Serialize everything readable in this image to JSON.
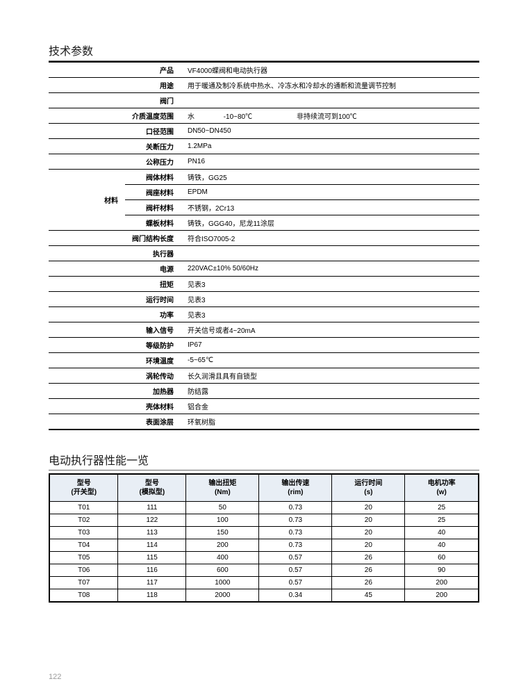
{
  "section1": {
    "title": "技术参数",
    "rows": [
      {
        "label": "产品",
        "value": "VF4000蝶阀和电动执行器"
      },
      {
        "label": "用途",
        "value": "用于暖通及制冷系统中热水、冷冻水和冷却水的通断和流量调节控制"
      },
      {
        "label": "阀门",
        "value": ""
      },
      {
        "label": "介质温度范围",
        "value": "水               -10~80℃                       非持续流可到100℃"
      },
      {
        "label": "口径范围",
        "value": "DN50~DN450"
      },
      {
        "label": "关断压力",
        "value": "1.2MPa"
      },
      {
        "label": "公称压力",
        "value": "PN16"
      },
      {
        "group": "材料",
        "sub": "阀体材料",
        "value": "铸铁，GG25"
      },
      {
        "group": "材料",
        "sub": "阀座材料",
        "value": "EPDM"
      },
      {
        "group": "材料",
        "sub": "阀杆材料",
        "value": "不锈钢，2Cr13"
      },
      {
        "group": "材料",
        "sub": "蝶板材料",
        "value": "铸铁，GGG40，尼龙11涂层"
      },
      {
        "label": "阀门结构长度",
        "value": "符合ISO7005-2"
      },
      {
        "label": "执行器",
        "value": ""
      },
      {
        "label": "电源",
        "value": "220VAC±10% 50/60Hz"
      },
      {
        "label": "扭矩",
        "value": "见表3"
      },
      {
        "label": "运行时间",
        "value": "见表3"
      },
      {
        "label": "功率",
        "value": "见表3"
      },
      {
        "label": "输入信号",
        "value": "开关信号或者4~20mA"
      },
      {
        "label": "等级防护",
        "value": "IP67"
      },
      {
        "label": "环境温度",
        "value": "-5~65℃"
      },
      {
        "label": "涡轮传动",
        "value": "长久润滑且具有自锁型"
      },
      {
        "label": "加热器",
        "value": "防结露"
      },
      {
        "label": "壳体材料",
        "value": "铝合金"
      },
      {
        "label": "表面涂层",
        "value": "环氧树脂"
      }
    ]
  },
  "section2": {
    "title": "电动执行器性能一览",
    "columns": [
      {
        "main": "型号",
        "sub": "(开关型)"
      },
      {
        "main": "型号",
        "sub": "(模拟型)"
      },
      {
        "main": "输出扭矩",
        "sub": "(Nm)"
      },
      {
        "main": "输出传速",
        "sub": "(rim)"
      },
      {
        "main": "运行时间",
        "sub": "(s)"
      },
      {
        "main": "电机功率",
        "sub": "(w)"
      }
    ],
    "rows": [
      [
        "T01",
        "111",
        "50",
        "0.73",
        "20",
        "25"
      ],
      [
        "T02",
        "122",
        "100",
        "0.73",
        "20",
        "25"
      ],
      [
        "T03",
        "113",
        "150",
        "0.73",
        "20",
        "40"
      ],
      [
        "T04",
        "114",
        "200",
        "0.73",
        "20",
        "40"
      ],
      [
        "T05",
        "115",
        "400",
        "0.57",
        "26",
        "60"
      ],
      [
        "T06",
        "116",
        "600",
        "0.57",
        "26",
        "90"
      ],
      [
        "T07",
        "117",
        "1000",
        "0.57",
        "26",
        "200"
      ],
      [
        "T08",
        "118",
        "2000",
        "0.34",
        "45",
        "200"
      ]
    ]
  },
  "page_number": "122",
  "colors": {
    "header_bg": "#e8eef5",
    "border": "#000000",
    "text": "#000000"
  }
}
